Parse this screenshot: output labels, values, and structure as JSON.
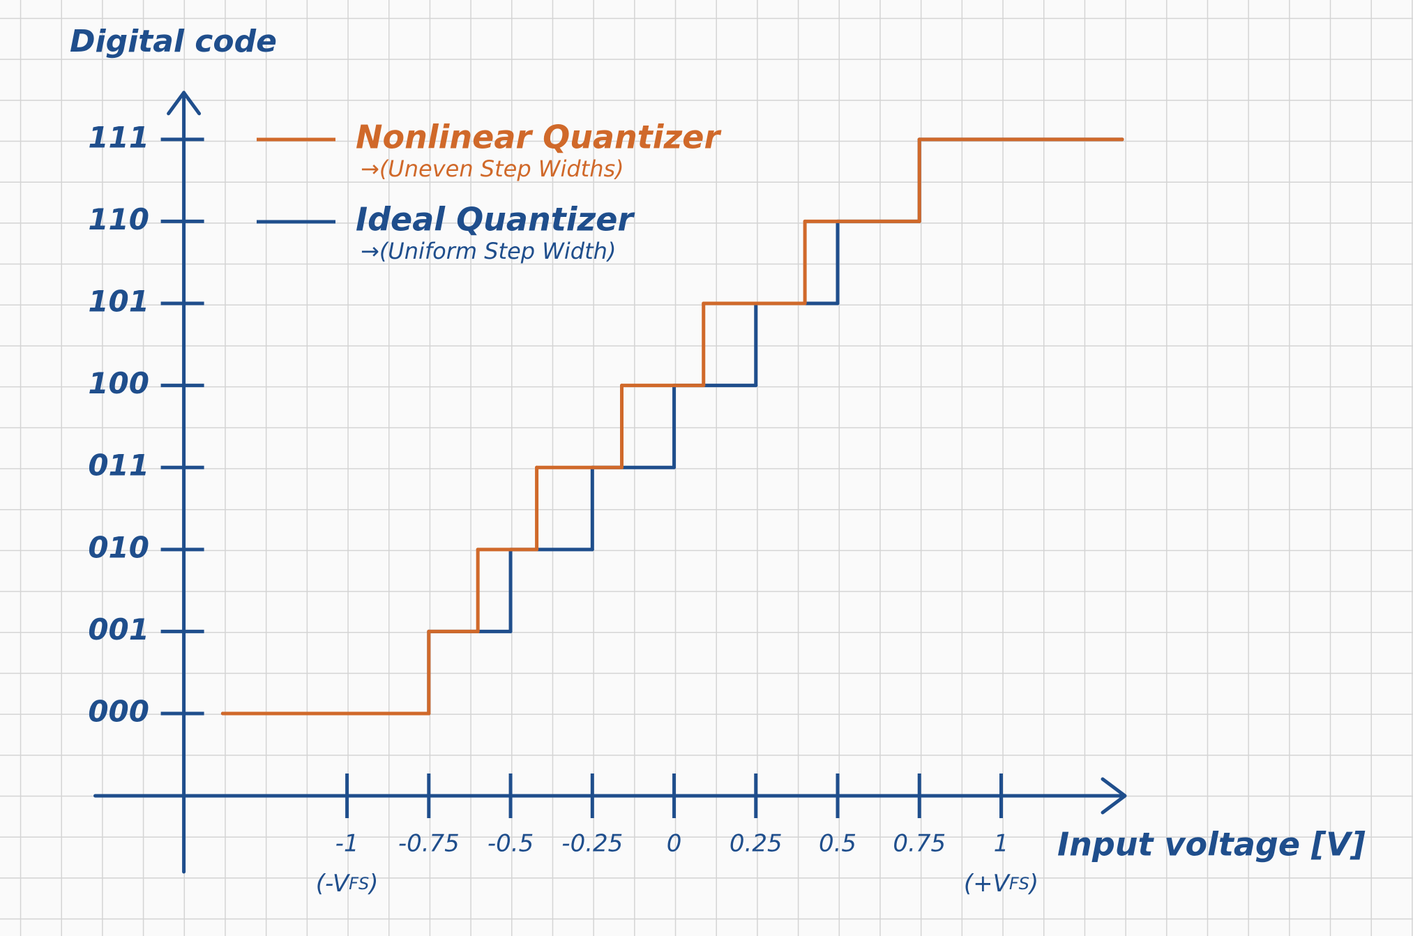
{
  "chart_data": {
    "type": "step",
    "y_label": "Digital code",
    "x_label": "Input voltage [V]",
    "axis_color": "#1f4e8c",
    "xlim": [
      -1.77,
      1.37
    ],
    "ylim": [
      -1.93,
      7.57
    ],
    "xticks": [
      -1,
      -0.75,
      -0.5,
      -0.25,
      0,
      0.25,
      0.5,
      0.75,
      1
    ],
    "yticks": [
      {
        "value": 0,
        "label": "000"
      },
      {
        "value": 1,
        "label": "001"
      },
      {
        "value": 2,
        "label": "010"
      },
      {
        "value": 3,
        "label": "011"
      },
      {
        "value": 4,
        "label": "100"
      },
      {
        "value": 5,
        "label": "101"
      },
      {
        "value": 6,
        "label": "110"
      },
      {
        "value": 7,
        "label": "111"
      }
    ],
    "x_tick_notes": [
      {
        "x": -1,
        "parts": [
          "(-V",
          "FS",
          ")"
        ]
      },
      {
        "x": 1,
        "parts": [
          "(+V",
          "FS",
          ")"
        ]
      }
    ],
    "series": [
      {
        "name": "Ideal Quantizer",
        "note": "→(Uniform Step Width)",
        "color": "#1f4e8c",
        "x": [
          -1.38,
          -0.75,
          -0.5,
          -0.25,
          0,
          0.25,
          0.5,
          0.75,
          1.37
        ],
        "values": [
          0,
          1,
          2,
          3,
          4,
          5,
          6,
          7,
          7
        ]
      },
      {
        "name": "Nonlinear Quantizer",
        "note": "→(Uneven Step Widths)",
        "color": "#d0692a",
        "x": [
          -1.38,
          -0.75,
          -0.6,
          -0.42,
          -0.16,
          0.09,
          0.4,
          0.75,
          1.37
        ],
        "values": [
          0,
          1,
          2,
          3,
          4,
          5,
          6,
          7,
          7
        ]
      }
    ]
  }
}
